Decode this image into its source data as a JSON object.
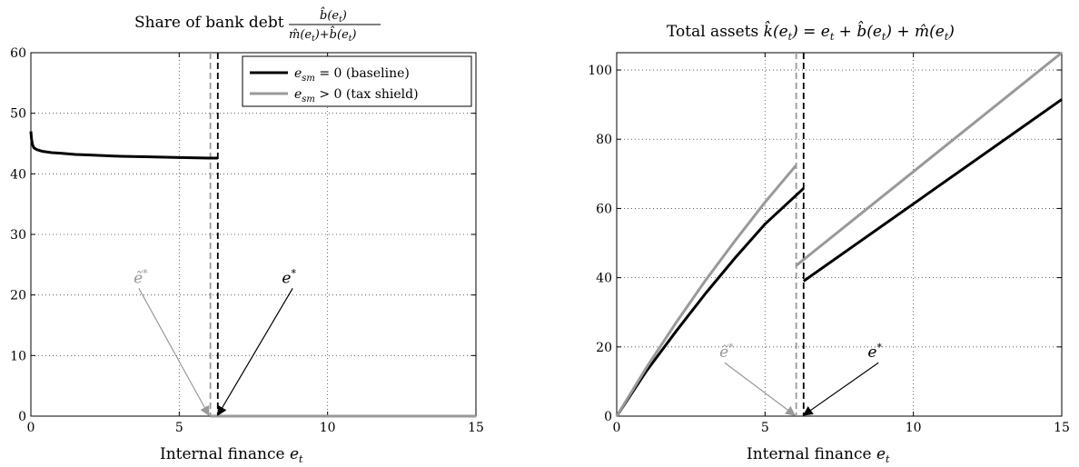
{
  "chart_data": [
    {
      "type": "line",
      "title": "Share of bank debt b̂(e_t) / (m̂(e_t)+b̂(e_t))",
      "title_parts": {
        "prefix": "Share of bank debt",
        "numerator": "b̂(e",
        "numerator_sub": "t",
        "numerator_end": ")",
        "denominator": "m̂(e",
        "denominator_sub": "t",
        "denominator_mid": ")+b̂(e",
        "denominator_end": ")"
      },
      "xlabel": "Internal finance e_t",
      "xlabel_parts": {
        "text": "Internal finance ",
        "var": "e",
        "sub": "t"
      },
      "xlim": [
        0,
        15
      ],
      "ylim": [
        0,
        60
      ],
      "xticks": [
        0,
        5,
        10,
        15
      ],
      "yticks": [
        0,
        10,
        20,
        30,
        40,
        50,
        60
      ],
      "grid": true,
      "legend_placement": "top-right",
      "series": [
        {
          "name": "e_sm = 0 (baseline)",
          "legend_label": {
            "var": "e",
            "sub": "sm",
            "rest": " = 0 (baseline)"
          },
          "color": "#000000",
          "segments": [
            {
              "x": [
                0,
                0.02,
                0.05,
                0.1,
                0.2,
                0.4,
                0.7,
                1.0,
                1.5,
                2.0,
                3.0,
                4.0,
                5.0,
                6.0,
                6.3
              ],
              "y": [
                47,
                45.8,
                44.9,
                44.3,
                44.0,
                43.7,
                43.5,
                43.4,
                43.2,
                43.1,
                42.9,
                42.8,
                42.7,
                42.6,
                42.6
              ]
            },
            {
              "x": [
                6.3,
                15
              ],
              "y": [
                0,
                0
              ]
            }
          ]
        },
        {
          "name": "e_sm > 0 (tax shield)",
          "legend_label": {
            "var": "e",
            "sub": "sm",
            "rest": " > 0 (tax shield)"
          },
          "color": "#999999",
          "segments": [
            {
              "x": [
                6.05,
                15
              ],
              "y": [
                0,
                0
              ]
            }
          ]
        }
      ],
      "vlines": [
        {
          "x": 6.05,
          "color": "#999999",
          "style": "dashed"
        },
        {
          "x": 6.3,
          "color": "#000000",
          "style": "dashed"
        }
      ],
      "annotations": [
        {
          "text": "ẽ*",
          "label": {
            "var": "ẽ",
            "sup": "*"
          },
          "color": "#999999",
          "text_x": 3.7,
          "text_y": 22,
          "arrow_to_x": 6.0,
          "arrow_to_y": 0
        },
        {
          "text": "e*",
          "label": {
            "var": "e",
            "sup": "*"
          },
          "color": "#000000",
          "text_x": 8.7,
          "text_y": 22,
          "arrow_to_x": 6.3,
          "arrow_to_y": 0
        }
      ]
    },
    {
      "type": "line",
      "title": "Total assets k̂(e_t) = e_t + b̂(e_t) + m̂(e_t)",
      "title_parts": {
        "prefix": "Total assets ",
        "formula": "k̂(e",
        "sub": "t",
        "rest1": ") = e",
        "rest2": " + b̂(e",
        "rest3": ") + m̂(e",
        "rest4": ")"
      },
      "xlabel": "Internal finance e_t",
      "xlabel_parts": {
        "text": "Internal finance ",
        "var": "e",
        "sub": "t"
      },
      "xlim": [
        0,
        15
      ],
      "ylim": [
        0,
        105
      ],
      "xticks": [
        0,
        5,
        10,
        15
      ],
      "yticks": [
        0,
        20,
        40,
        60,
        80,
        100
      ],
      "grid": true,
      "series": [
        {
          "name": "e_sm = 0 (baseline)",
          "color": "#000000",
          "segments": [
            {
              "x": [
                0,
                1,
                2,
                3,
                4,
                5,
                6.3
              ],
              "y": [
                0,
                13.0,
                24.5,
                35.5,
                45.8,
                55.5,
                65.8
              ]
            },
            {
              "x": [
                6.3,
                15
              ],
              "y": [
                39.0,
                91.5
              ]
            }
          ]
        },
        {
          "name": "e_sm > 0 (tax shield)",
          "color": "#999999",
          "segments": [
            {
              "x": [
                0,
                1,
                2,
                3,
                4,
                5,
                6.05
              ],
              "y": [
                0,
                14.0,
                27.0,
                39.3,
                50.8,
                61.8,
                72.5
              ]
            },
            {
              "x": [
                6.05,
                15
              ],
              "y": [
                43.5,
                105
              ]
            }
          ]
        }
      ],
      "vlines": [
        {
          "x": 6.05,
          "color": "#999999",
          "style": "dashed"
        },
        {
          "x": 6.3,
          "color": "#000000",
          "style": "dashed"
        }
      ],
      "annotations": [
        {
          "text": "ẽ*",
          "label": {
            "var": "ẽ",
            "sup": "*"
          },
          "color": "#999999",
          "text_x": 3.7,
          "text_y": 17,
          "arrow_to_x": 6.0,
          "arrow_to_y": 0
        },
        {
          "text": "e*",
          "label": {
            "var": "e",
            "sup": "*"
          },
          "color": "#000000",
          "text_x": 8.7,
          "text_y": 17,
          "arrow_to_x": 6.3,
          "arrow_to_y": 0
        }
      ]
    }
  ]
}
